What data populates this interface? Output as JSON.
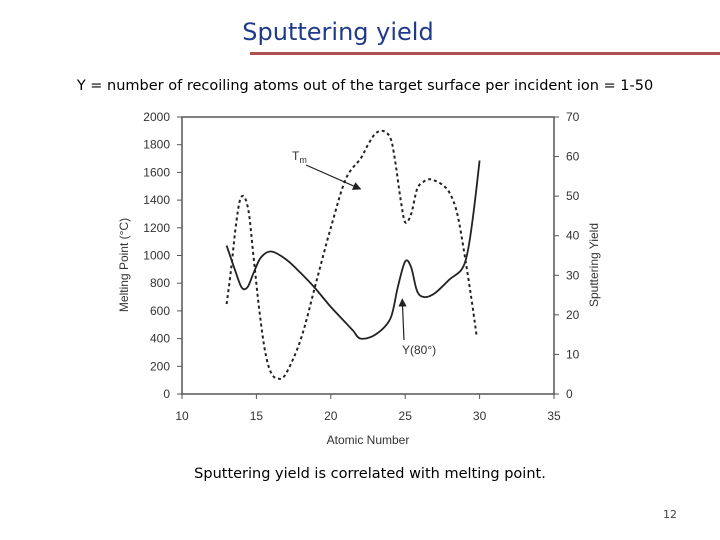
{
  "slide": {
    "title": "Sputtering yield",
    "subtitle": "Y = number of recoiling atoms out of the target surface per incident ion = 1-50",
    "caption": "Sputtering yield is correlated with melting point.",
    "page_number": "12"
  },
  "colors": {
    "title": "#1f3a8a",
    "rule": "#b05050",
    "curve": "#222222",
    "frame": "#555555"
  },
  "chart_data": {
    "type": "line",
    "xlabel": "Atomic Number",
    "ylabel_left": "Melting Point (°C)",
    "ylabel_right": "Sputtering Yield",
    "xlim": [
      10,
      35
    ],
    "ylim_left": [
      0,
      2000
    ],
    "ylim_right": [
      0,
      70
    ],
    "x_ticks": [
      10,
      15,
      20,
      25,
      30,
      35
    ],
    "y_ticks_left": [
      0,
      200,
      400,
      600,
      800,
      1000,
      1200,
      1400,
      1600,
      1800,
      2000
    ],
    "y_ticks_right": [
      0,
      10,
      20,
      30,
      40,
      50,
      60,
      70
    ],
    "grid": false,
    "series": [
      {
        "name": "Tm",
        "axis": "left",
        "style": "dashed",
        "x": [
          13.0,
          13.3,
          13.6,
          13.9,
          14.2,
          14.5,
          14.8,
          15.2,
          15.6,
          16.0,
          16.5,
          17.0,
          18.0,
          19.0,
          20.0,
          21.0,
          22.0,
          22.5,
          23.0,
          23.5,
          24.0,
          24.3,
          24.7,
          25.0,
          25.4,
          25.8,
          26.2,
          26.6,
          27.0,
          27.5,
          28.0,
          28.5,
          29.0,
          29.5,
          29.8
        ],
        "y": [
          650,
          900,
          1200,
          1400,
          1420,
          1300,
          1000,
          600,
          300,
          150,
          110,
          150,
          400,
          800,
          1200,
          1550,
          1700,
          1800,
          1880,
          1900,
          1850,
          1700,
          1400,
          1240,
          1300,
          1480,
          1530,
          1550,
          1540,
          1510,
          1450,
          1300,
          1000,
          650,
          420
        ]
      },
      {
        "name": "Y(80°)",
        "axis": "right",
        "style": "solid",
        "x": [
          13.0,
          13.5,
          14.0,
          14.4,
          14.8,
          15.3,
          16.0,
          17.0,
          18.0,
          19.0,
          20.0,
          21.0,
          21.5,
          22.0,
          23.0,
          24.0,
          24.5,
          25.0,
          25.4,
          25.8,
          26.3,
          27.0,
          28.0,
          28.8,
          29.2,
          29.6,
          30.0
        ],
        "y": [
          37.5,
          32,
          27,
          27,
          30.5,
          34.5,
          36,
          34,
          30.5,
          26.5,
          22,
          18,
          16,
          14,
          15,
          19,
          27,
          33.5,
          32,
          26,
          24.5,
          25.5,
          29,
          31.5,
          36,
          46,
          59
        ]
      }
    ],
    "annotations": [
      {
        "text": "Tm",
        "arrow_to": [
          22.0,
          1480
        ],
        "series": "Tm"
      },
      {
        "text": "Y(80°)",
        "arrow_to": [
          24.8,
          24
        ],
        "series": "Y(80°)"
      }
    ]
  }
}
